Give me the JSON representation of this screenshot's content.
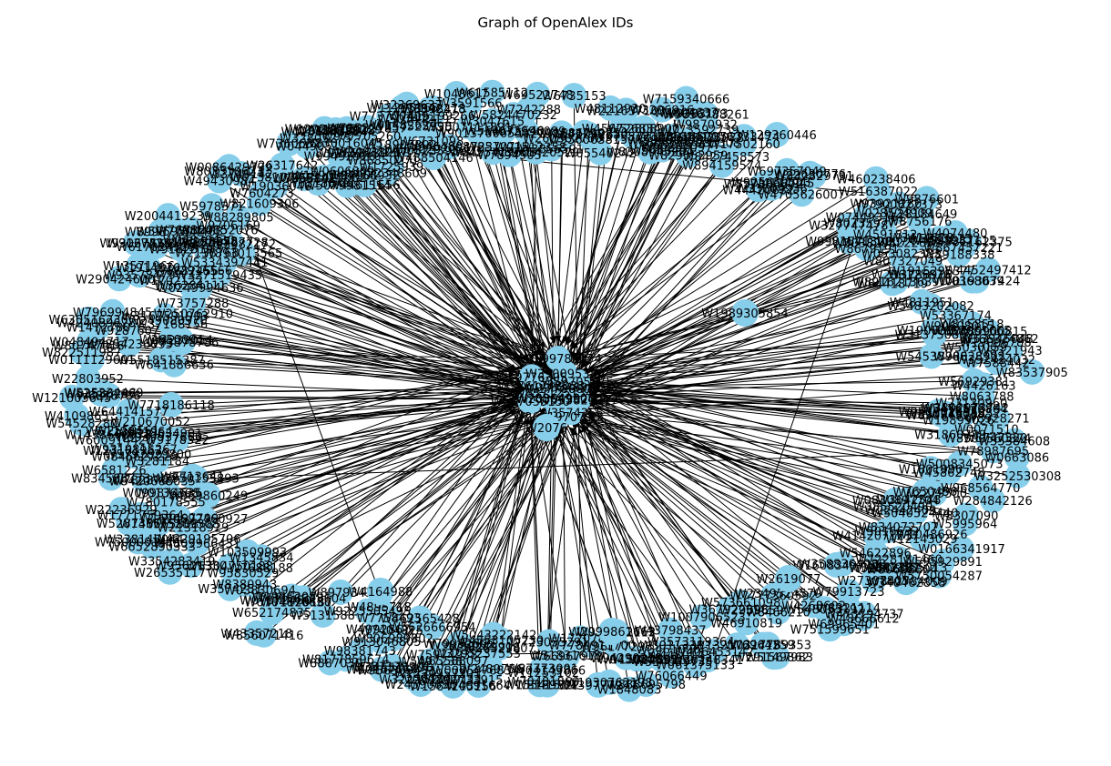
{
  "figure": {
    "title": "Graph of OpenAlex IDs"
  },
  "graph": {
    "node_color": "#87ceeb",
    "edge_color": "#000000",
    "legible_node_labels": [
      "W1989305854",
      "W2619077",
      "W4164988",
      "W2099861663",
      "W2076"
    ]
  }
}
